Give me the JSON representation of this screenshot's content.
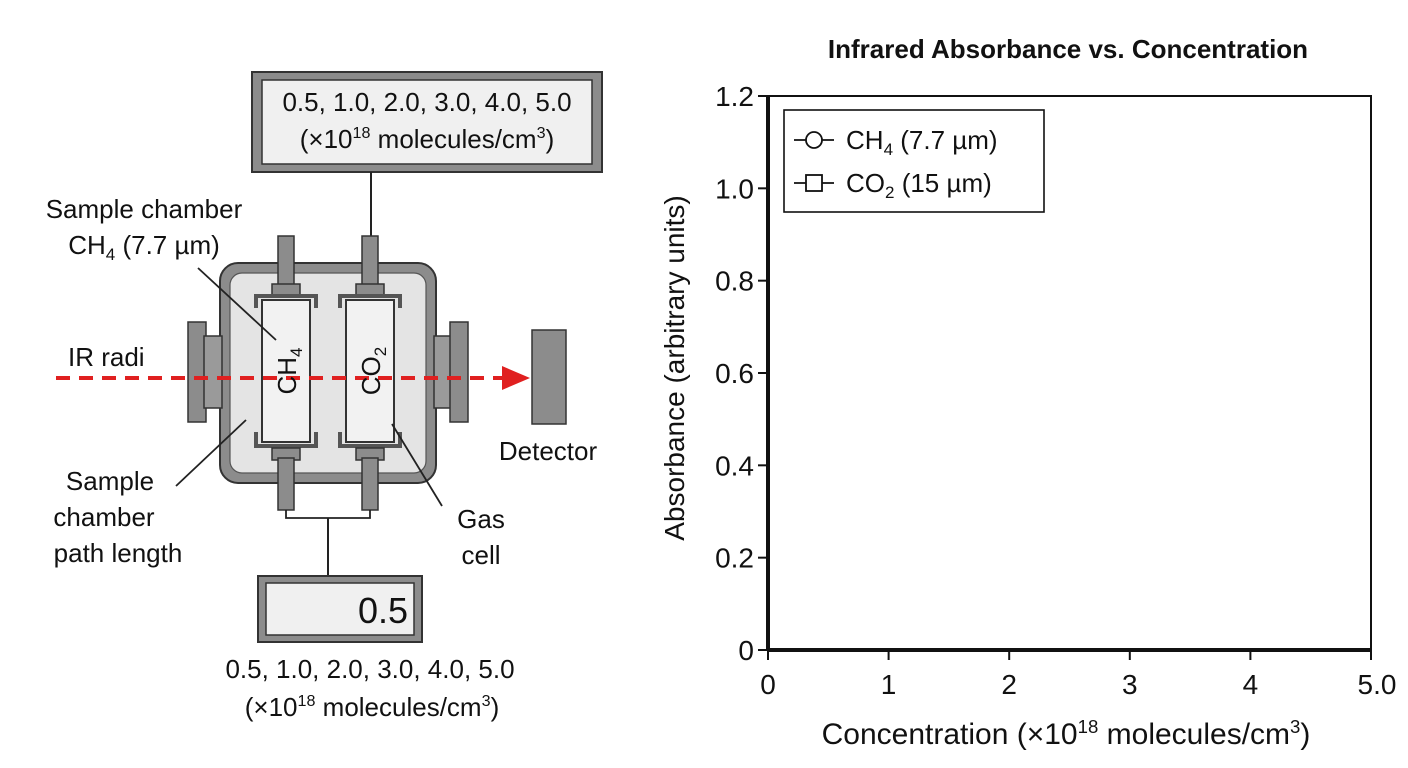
{
  "apparatus": {
    "top_box": {
      "line1": "0.5, 1.0, 2.0, 3.0, 4.0, 5.0",
      "line2_prefix": "(×10",
      "line2_exp": "18",
      "line2_mid": " molecules/cm",
      "line2_unitexp": "3",
      "line2_suffix": ")"
    },
    "sample_chamber_label": {
      "line1": "Sample chamber",
      "line2_base": "CH",
      "line2_sub": "4",
      "line2_rest": " (7.7 µm)"
    },
    "ir_label": "IR radi",
    "cell_ch4": {
      "base": "CH",
      "sub": "4"
    },
    "cell_co2": {
      "base": "CO",
      "sub": "2"
    },
    "detector_label": "Detector",
    "path_length_label": {
      "line1": "Sample",
      "line2": "chamber",
      "line3": "path length"
    },
    "gas_cell_label": {
      "line1": "Gas",
      "line2": "cell"
    },
    "readout_value": "0.5",
    "bottom_text": {
      "line1": "0.5, 1.0, 2.0, 3.0, 4.0, 5.0",
      "line2_prefix": "(×10",
      "line2_exp": "18",
      "line2_mid": " molecules/cm",
      "line2_unitexp": "3",
      "line2_suffix": ")"
    },
    "colors": {
      "beam": "#e02020",
      "metal": "#8c8c8c",
      "chamber": "#e4e4e4",
      "box": "#f0f0f0"
    }
  },
  "chart_data": {
    "type": "scatter",
    "title": "Infrared Absorbance vs. Concentration",
    "xlabel": {
      "prefix": "Concentration (×10",
      "exp": "18",
      "mid": " molecules/cm",
      "unitexp": "3",
      "suffix": ")"
    },
    "ylabel": "Absorbance (arbitrary units)",
    "xlim": [
      0,
      5
    ],
    "ylim": [
      0,
      1.2
    ],
    "xticks": [
      "0",
      "1",
      "2",
      "3",
      "4",
      "5.0"
    ],
    "yticks": [
      "0",
      "0.2",
      "0.4",
      "0.6",
      "0.8",
      "1.0",
      "1.2"
    ],
    "grid": false,
    "legend_position": "top-left",
    "series": [
      {
        "name_base": "CH",
        "name_sub": "4",
        "name_rest": " (7.7 µm)",
        "marker": "circle",
        "values": []
      },
      {
        "name_base": "CO",
        "name_sub": "2",
        "name_rest": " (15 µm)",
        "marker": "square",
        "values": []
      }
    ]
  }
}
